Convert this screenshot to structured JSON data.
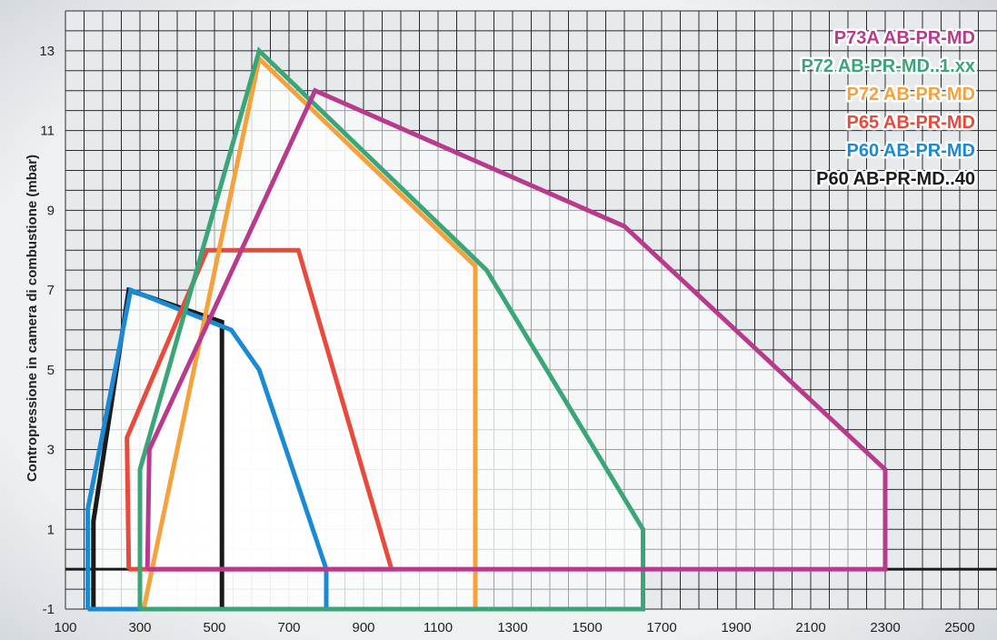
{
  "chart_data": {
    "type": "line",
    "ylabel": "Contropressione in camera di combustione (mbar)",
    "xlabel": "",
    "xlim": [
      100,
      2600
    ],
    "ylim": [
      -1,
      14
    ],
    "x_ticks": [
      "100",
      "300",
      "500",
      "700",
      "900",
      "1100",
      "1300",
      "1500",
      "1700",
      "1900",
      "2100",
      "2300",
      "2500"
    ],
    "y_ticks": [
      "-1",
      "1",
      "3",
      "5",
      "7",
      "9",
      "11",
      "13"
    ],
    "grid": true,
    "legend_position": "top-right",
    "series": [
      {
        "name": "P73A AB-PR-MD",
        "color": "#b83a8c",
        "points": [
          [
            320,
            0
          ],
          [
            2300,
            0
          ],
          [
            2300,
            2.5
          ],
          [
            1600,
            8.6
          ],
          [
            770,
            12
          ],
          [
            325,
            3
          ],
          [
            320,
            0
          ]
        ]
      },
      {
        "name": "P72 AB-PR-MD..1.xx",
        "color": "#3aa678",
        "points": [
          [
            300,
            -1
          ],
          [
            1650,
            -1
          ],
          [
            1650,
            1
          ],
          [
            1230,
            7.5
          ],
          [
            620,
            13
          ],
          [
            300,
            2.5
          ],
          [
            300,
            -1
          ]
        ]
      },
      {
        "name": "P72 AB-PR-MD",
        "color": "#f5a23c",
        "points": [
          [
            310,
            -1
          ],
          [
            1200,
            -1
          ],
          [
            1200,
            7.6
          ],
          [
            620,
            12.8
          ],
          [
            310,
            -1
          ]
        ]
      },
      {
        "name": "P65 AB-PR-MD",
        "color": "#e84a3c",
        "points": [
          [
            270,
            0
          ],
          [
            975,
            0
          ],
          [
            725,
            8
          ],
          [
            480,
            8
          ],
          [
            265,
            3.3
          ],
          [
            270,
            0
          ]
        ]
      },
      {
        "name": "P60 AB-PR-MD",
        "color": "#1a8ad4",
        "points": [
          [
            160,
            -1
          ],
          [
            800,
            -1
          ],
          [
            800,
            0
          ],
          [
            620,
            5
          ],
          [
            545,
            6
          ],
          [
            275,
            7
          ],
          [
            160,
            1.5
          ],
          [
            160,
            -1
          ]
        ]
      },
      {
        "name": "P60 AB-PR-MD..40",
        "color": "#1a1a1a",
        "points": [
          [
            175,
            -1
          ],
          [
            520,
            -1
          ],
          [
            520,
            6.2
          ],
          [
            270,
            7
          ],
          [
            175,
            1.2
          ],
          [
            175,
            -1
          ]
        ]
      }
    ],
    "zero_line_color": "#1a1a1a"
  }
}
